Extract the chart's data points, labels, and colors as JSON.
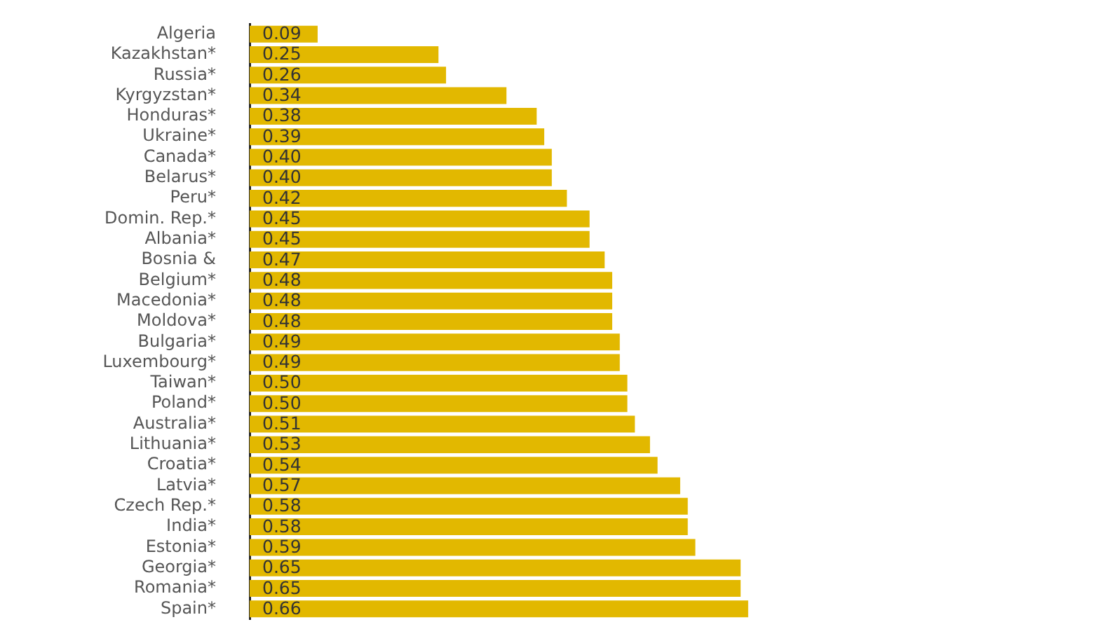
{
  "chart_data": {
    "type": "bar",
    "orientation": "horizontal",
    "categories": [
      "Algeria",
      "Kazakhstan*",
      "Russia*",
      "Kyrgyzstan*",
      "Honduras*",
      "Ukraine*",
      "Canada*",
      "Belarus*",
      "Peru*",
      "Domin. Rep.*",
      "Albania*",
      "Bosnia &",
      "Belgium*",
      "Macedonia*",
      "Moldova*",
      "Bulgaria*",
      "Luxembourg*",
      "Taiwan*",
      "Poland*",
      "Australia*",
      "Lithuania*",
      "Croatia*",
      "Latvia*",
      "Czech Rep.*",
      "India*",
      "Estonia*",
      "Georgia*",
      "Romania*",
      "Spain*"
    ],
    "values": [
      0.09,
      0.25,
      0.26,
      0.34,
      0.38,
      0.39,
      0.4,
      0.4,
      0.42,
      0.45,
      0.45,
      0.47,
      0.48,
      0.48,
      0.48,
      0.49,
      0.49,
      0.5,
      0.5,
      0.51,
      0.53,
      0.54,
      0.57,
      0.58,
      0.58,
      0.59,
      0.65,
      0.65,
      0.66
    ],
    "value_labels": [
      "0.09",
      "0.25",
      "0.26",
      "0.34",
      "0.38",
      "0.39",
      "0.40",
      "0.40",
      "0.42",
      "0.45",
      "0.45",
      "0.47",
      "0.48",
      "0.48",
      "0.48",
      "0.49",
      "0.49",
      "0.50",
      "0.50",
      "0.51",
      "0.53",
      "0.54",
      "0.57",
      "0.58",
      "0.58",
      "0.59",
      "0.65",
      "0.65",
      "0.66"
    ],
    "color": "#e2b800",
    "tick_labels": "y"
  }
}
